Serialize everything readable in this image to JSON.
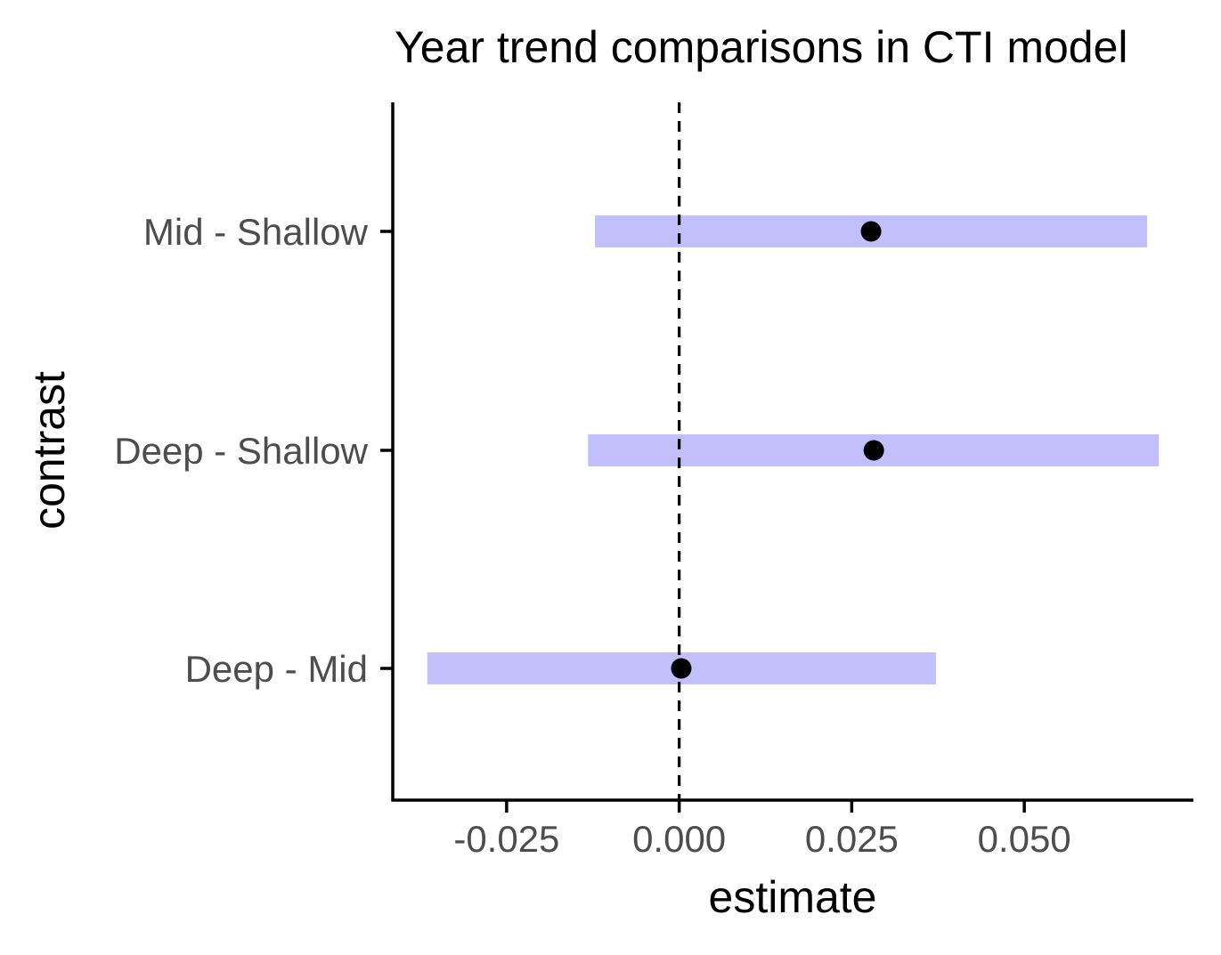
{
  "chart_data": {
    "type": "interval",
    "title": "Year trend comparisons in CTI model",
    "xlabel": "estimate",
    "ylabel": "contrast",
    "categories": [
      "Mid - Shallow",
      "Deep - Shallow",
      "Deep - Mid"
    ],
    "estimates": [
      0.0278,
      0.0282,
      0.0003
    ],
    "lower": [
      -0.0122,
      -0.0132,
      -0.0365
    ],
    "upper": [
      0.0678,
      0.0695,
      0.0372
    ],
    "xlim": [
      -0.0415,
      0.0745
    ],
    "xticks": [
      -0.025,
      0.0,
      0.025,
      0.05
    ],
    "xtick_labels": [
      "-0.025",
      "0.000",
      "0.025",
      "0.050"
    ],
    "reference_line": 0,
    "grid": false,
    "legend": "none",
    "interval_color": "#c1c0fd",
    "point_color": "#000000"
  }
}
